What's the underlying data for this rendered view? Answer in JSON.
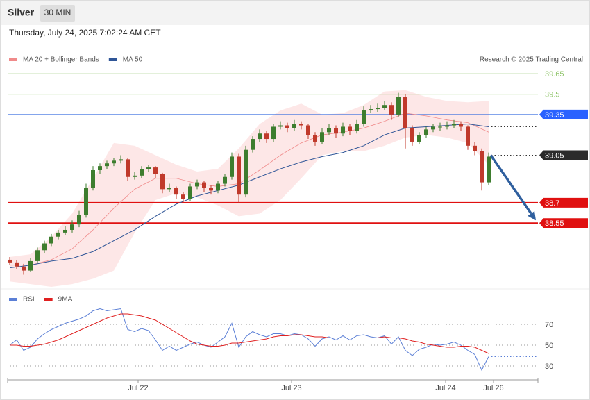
{
  "header": {
    "symbol": "Silver",
    "interval": "30 MIN",
    "timestamp": "Thursday, July 24, 2025 7:02:24 AM CET"
  },
  "chart_data": [
    {
      "type": "candlestick",
      "source": "Research © 2025 Trading Central",
      "up_color": "#3d7d2e",
      "down_color": "#c0392b",
      "xlim": [
        -0.3,
        76.1
      ],
      "ylim": [
        38.07,
        39.81
      ],
      "candles": [
        [
          38.28,
          38.3,
          38.24,
          38.26
        ],
        [
          38.26,
          38.28,
          38.21,
          38.23
        ],
        [
          38.23,
          38.25,
          38.17,
          38.2
        ],
        [
          38.2,
          38.29,
          38.19,
          38.27
        ],
        [
          38.27,
          38.37,
          38.26,
          38.35
        ],
        [
          38.35,
          38.42,
          38.33,
          38.4
        ],
        [
          38.4,
          38.47,
          38.38,
          38.45
        ],
        [
          38.45,
          38.5,
          38.43,
          38.48
        ],
        [
          38.48,
          38.53,
          38.46,
          38.5
        ],
        [
          38.5,
          38.57,
          38.48,
          38.54
        ],
        [
          38.54,
          38.64,
          38.52,
          38.61
        ],
        [
          38.61,
          38.84,
          38.59,
          38.81
        ],
        [
          38.81,
          38.97,
          38.79,
          38.94
        ],
        [
          38.94,
          38.99,
          38.91,
          38.97
        ],
        [
          38.97,
          39.01,
          38.95,
          38.99
        ],
        [
          38.99,
          39.03,
          38.97,
          39.01
        ],
        [
          39.01,
          39.05,
          38.99,
          39.02
        ],
        [
          39.02,
          39.03,
          38.86,
          38.89
        ],
        [
          38.89,
          38.93,
          38.87,
          38.9
        ],
        [
          38.9,
          38.97,
          38.88,
          38.95
        ],
        [
          38.95,
          38.98,
          38.93,
          38.96
        ],
        [
          38.96,
          38.97,
          38.88,
          38.91
        ],
        [
          38.91,
          38.92,
          38.77,
          38.8
        ],
        [
          38.8,
          38.84,
          38.78,
          38.81
        ],
        [
          38.81,
          38.82,
          38.73,
          38.76
        ],
        [
          38.76,
          38.78,
          38.7,
          38.73
        ],
        [
          38.73,
          38.84,
          38.71,
          38.82
        ],
        [
          38.82,
          38.87,
          38.8,
          38.85
        ],
        [
          38.85,
          38.86,
          38.78,
          38.81
        ],
        [
          38.81,
          38.83,
          38.76,
          38.79
        ],
        [
          38.79,
          38.86,
          38.77,
          38.84
        ],
        [
          38.84,
          38.91,
          38.82,
          38.89
        ],
        [
          38.89,
          39.07,
          38.87,
          39.04
        ],
        [
          39.04,
          39.06,
          38.7,
          38.76
        ],
        [
          38.76,
          39.12,
          38.74,
          39.09
        ],
        [
          39.09,
          39.19,
          39.07,
          39.17
        ],
        [
          39.17,
          39.24,
          39.15,
          39.21
        ],
        [
          39.21,
          39.23,
          39.14,
          39.17
        ],
        [
          39.17,
          39.28,
          39.15,
          39.26
        ],
        [
          39.26,
          39.3,
          39.24,
          39.27
        ],
        [
          39.27,
          39.29,
          39.22,
          39.25
        ],
        [
          39.25,
          39.31,
          39.23,
          39.28
        ],
        [
          39.28,
          39.3,
          39.24,
          39.27
        ],
        [
          39.27,
          39.28,
          39.17,
          39.2
        ],
        [
          39.2,
          39.22,
          39.12,
          39.15
        ],
        [
          39.15,
          39.25,
          39.13,
          39.22
        ],
        [
          39.22,
          39.28,
          39.2,
          39.25
        ],
        [
          39.25,
          39.27,
          39.18,
          39.21
        ],
        [
          39.21,
          39.29,
          39.19,
          39.26
        ],
        [
          39.26,
          39.28,
          39.2,
          39.23
        ],
        [
          39.23,
          39.31,
          39.21,
          39.28
        ],
        [
          39.28,
          39.41,
          39.26,
          39.38
        ],
        [
          39.38,
          39.42,
          39.36,
          39.39
        ],
        [
          39.39,
          39.43,
          39.37,
          39.4
        ],
        [
          39.4,
          39.45,
          39.38,
          39.42
        ],
        [
          39.42,
          39.44,
          39.31,
          39.35
        ],
        [
          39.35,
          39.51,
          39.33,
          39.48
        ],
        [
          39.48,
          39.5,
          39.1,
          39.25
        ],
        [
          39.25,
          39.27,
          39.12,
          39.15
        ],
        [
          39.15,
          39.22,
          39.13,
          39.2
        ],
        [
          39.2,
          39.26,
          39.18,
          39.24
        ],
        [
          39.24,
          39.28,
          39.22,
          39.26
        ],
        [
          39.26,
          39.29,
          39.23,
          39.26
        ],
        [
          39.26,
          39.3,
          39.24,
          39.27
        ],
        [
          39.27,
          39.31,
          39.25,
          39.28
        ],
        [
          39.28,
          39.3,
          39.23,
          39.26
        ],
        [
          39.26,
          39.27,
          39.09,
          39.12
        ],
        [
          39.12,
          39.15,
          39.05,
          39.08
        ],
        [
          39.08,
          39.1,
          38.79,
          38.85
        ],
        [
          38.85,
          39.07,
          38.83,
          39.04
        ]
      ],
      "series": [
        {
          "name": "MA 20 + Bollinger Bands",
          "color": "#f08a8a",
          "band_color": "#fde3e3",
          "x": [
            0,
            3,
            6,
            9,
            12,
            15,
            18,
            21,
            24,
            27,
            30,
            33,
            36,
            39,
            42,
            45,
            48,
            51,
            54,
            57,
            60,
            63,
            66,
            69
          ],
          "values": [
            38.24,
            38.24,
            38.28,
            38.36,
            38.5,
            38.66,
            38.8,
            38.88,
            38.88,
            38.84,
            38.82,
            38.84,
            38.94,
            39.05,
            39.14,
            39.2,
            39.22,
            39.25,
            39.3,
            39.36,
            39.34,
            39.31,
            39.29,
            39.22
          ],
          "upper": [
            38.3,
            38.32,
            38.45,
            38.62,
            38.88,
            39.14,
            39.12,
            39.05,
            38.98,
            38.93,
            38.95,
            39.1,
            39.28,
            39.38,
            39.43,
            39.35,
            39.36,
            39.42,
            39.52,
            39.53,
            39.48,
            39.45,
            39.44,
            39.45
          ],
          "lower": [
            38.12,
            38.1,
            38.08,
            38.1,
            38.14,
            38.2,
            38.48,
            38.72,
            38.77,
            38.74,
            38.68,
            38.6,
            38.62,
            38.72,
            38.88,
            39.05,
            39.08,
            39.08,
            39.12,
            39.18,
            39.2,
            39.18,
            39.14,
            38.98
          ]
        },
        {
          "name": "MA 50",
          "color": "#2f5597",
          "x": [
            0,
            3,
            6,
            9,
            12,
            15,
            18,
            21,
            24,
            27,
            30,
            33,
            36,
            39,
            42,
            45,
            48,
            51,
            54,
            57,
            60,
            63,
            66,
            69
          ],
          "values": [
            38.22,
            38.24,
            38.27,
            38.29,
            38.34,
            38.42,
            38.5,
            38.6,
            38.69,
            38.75,
            38.79,
            38.83,
            38.89,
            38.95,
            39.0,
            39.04,
            39.07,
            39.12,
            39.2,
            39.25,
            39.26,
            39.27,
            39.28,
            39.26
          ]
        }
      ],
      "levels": [
        {
          "value": 39.65,
          "color": "#8fc46a",
          "style": "solid",
          "width": 1,
          "badge": null
        },
        {
          "value": 39.5,
          "color": "#8fc46a",
          "style": "solid",
          "width": 1,
          "badge": null
        },
        {
          "value": 39.35,
          "color": "#3b6fe0",
          "style": "solid",
          "width": 1,
          "badge": "#2962ff"
        },
        {
          "value": 39.05,
          "color": "#333333",
          "style": "dotted",
          "width": 1,
          "badge": "#2b2b2b"
        },
        {
          "value": 38.7,
          "color": "#e01010",
          "style": "solid",
          "width": 2,
          "badge": "#e01010"
        },
        {
          "value": 38.55,
          "color": "#e01010",
          "style": "solid",
          "width": 2,
          "badge": "#e01010"
        }
      ],
      "arrow": {
        "from": [
          69.3,
          39.05
        ],
        "to": [
          75.8,
          38.57
        ],
        "color": "#2f5f9e"
      }
    },
    {
      "type": "line",
      "xlim": [
        -0.3,
        76.1
      ],
      "ylim": [
        18,
        88
      ],
      "yticks": [
        30,
        50,
        70
      ],
      "grid": true,
      "xticks": [
        {
          "value": 18.5,
          "label": "Jul 22"
        },
        {
          "value": 40.6,
          "label": "Jul 23"
        },
        {
          "value": 62.8,
          "label": "Jul 24"
        },
        {
          "value": 69.7,
          "label": "Jul 26"
        }
      ],
      "series": [
        {
          "name": "RSI",
          "color": "#5b7fd6",
          "values": [
            50,
            55,
            45,
            48,
            56,
            61,
            65,
            68,
            71,
            73,
            75,
            78,
            83,
            85,
            83,
            84,
            85,
            65,
            63,
            66,
            64,
            55,
            45,
            49,
            45,
            48,
            51,
            53,
            50,
            48,
            53,
            58,
            71,
            48,
            58,
            63,
            60,
            58,
            61,
            61,
            59,
            61,
            60,
            56,
            49,
            56,
            58,
            55,
            59,
            55,
            59,
            60,
            58,
            57,
            59,
            51,
            58,
            45,
            40,
            46,
            48,
            51,
            50,
            51,
            53,
            50,
            45,
            41,
            26,
            39
          ]
        },
        {
          "name": "9MA",
          "color": "#e02020",
          "values": [
            50,
            50,
            49,
            49,
            50,
            51,
            53,
            55,
            58,
            61,
            64,
            67,
            70,
            73,
            76,
            78,
            80,
            80,
            79,
            78,
            76,
            74,
            70,
            66,
            62,
            58,
            54,
            51,
            50,
            49,
            49,
            50,
            52,
            52,
            53,
            54,
            55,
            56,
            58,
            59,
            59,
            60,
            60,
            59,
            58,
            58,
            57,
            57,
            57,
            57,
            57,
            57,
            57,
            57,
            58,
            57,
            57,
            56,
            54,
            53,
            51,
            50,
            49,
            48,
            48,
            49,
            49,
            48,
            45,
            42
          ]
        }
      ]
    }
  ]
}
